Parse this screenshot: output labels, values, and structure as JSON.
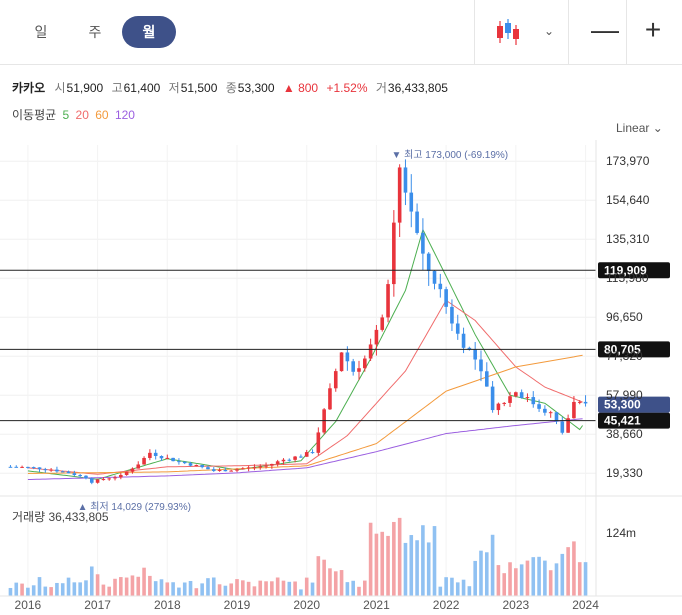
{
  "toolbar": {
    "tabs": [
      {
        "label": "일",
        "active": false
      },
      {
        "label": "주",
        "active": false
      },
      {
        "label": "월",
        "active": true
      }
    ],
    "chart_style_icon": "candlestick-icon",
    "dropdown_icon": "chevron-down-icon",
    "zoom_out_icon": "minus-icon",
    "zoom_in_icon": "plus-icon",
    "zoom_out_label": "—",
    "zoom_in_label": "+"
  },
  "info": {
    "name": "카카오",
    "open_label": "시",
    "open": "51,900",
    "high_label": "고",
    "high": "61,400",
    "low_label": "저",
    "low": "51,500",
    "close_label": "종",
    "close": "53,300",
    "change_arrow": "▲",
    "change": "800",
    "change_pct": "+1.52%",
    "volume_label": "거",
    "volume": "36,433,805"
  },
  "ma": {
    "label": "이동평균",
    "periods": [
      {
        "label": "5",
        "color": "#4caf50"
      },
      {
        "label": "20",
        "color": "#f06b6b"
      },
      {
        "label": "60",
        "color": "#f39a3c"
      },
      {
        "label": "120",
        "color": "#9b5fe0"
      }
    ]
  },
  "scale_label": "Linear",
  "colors": {
    "up": "#e8343c",
    "down": "#3b8eea",
    "accent": "#3e5189"
  },
  "chart_data": {
    "type": "candlestick",
    "x_tick_labels": [
      "2016",
      "2017",
      "2018",
      "2019",
      "2020",
      "2021",
      "2022",
      "2023",
      "2024"
    ],
    "y_tick_labels": [
      "173,970",
      "154,640",
      "135,310",
      "115,980",
      "96,650",
      "77,320",
      "57,990",
      "38,660",
      "19,330"
    ],
    "ylim": [
      12000,
      182000
    ],
    "grid": true,
    "horizontal_lines": [
      {
        "value": 119909,
        "label": "119,909",
        "badge_color": "#111111"
      },
      {
        "value": 80705,
        "label": "80,705",
        "badge_color": "#111111"
      },
      {
        "value": 45421,
        "label": "45,421",
        "badge_color": "#111111"
      }
    ],
    "last_price": {
      "value": 53300,
      "label": "53,300",
      "badge_color": "#3e5189"
    },
    "annotations": {
      "high": {
        "arrow": "▼",
        "label": "최고",
        "text": "173,000 (-69.19%)",
        "value": 173000,
        "date": "2021-06"
      },
      "low": {
        "arrow": "▲",
        "label": "최저",
        "text": "14,029 (279.93%)",
        "value": 14029,
        "date": "2017-01"
      }
    },
    "series_close": [
      [
        "2015-12",
        22500
      ],
      [
        "2016-03",
        22000
      ],
      [
        "2016-06",
        21200
      ],
      [
        "2016-09",
        19500
      ],
      [
        "2016-12",
        17200
      ],
      [
        "2017-01",
        15000
      ],
      [
        "2017-03",
        16500
      ],
      [
        "2017-06",
        18000
      ],
      [
        "2017-09",
        24000
      ],
      [
        "2017-11",
        29500
      ],
      [
        "2018-01",
        27500
      ],
      [
        "2018-04",
        25000
      ],
      [
        "2018-07",
        23000
      ],
      [
        "2018-10",
        20500
      ],
      [
        "2019-01",
        21000
      ],
      [
        "2019-04",
        22000
      ],
      [
        "2019-07",
        23000
      ],
      [
        "2019-10",
        26000
      ],
      [
        "2020-01",
        28000
      ],
      [
        "2020-03",
        30000
      ],
      [
        "2020-04",
        40000
      ],
      [
        "2020-06",
        60000
      ],
      [
        "2020-08",
        80000
      ],
      [
        "2020-10",
        70000
      ],
      [
        "2020-12",
        76000
      ],
      [
        "2021-02",
        88000
      ],
      [
        "2021-04",
        110000
      ],
      [
        "2021-06",
        170000
      ],
      [
        "2021-08",
        150000
      ],
      [
        "2021-10",
        125000
      ],
      [
        "2021-12",
        115000
      ],
      [
        "2022-02",
        102000
      ],
      [
        "2022-04",
        88000
      ],
      [
        "2022-06",
        80000
      ],
      [
        "2022-08",
        72000
      ],
      [
        "2022-10",
        52000
      ],
      [
        "2022-12",
        55000
      ],
      [
        "2023-02",
        60000
      ],
      [
        "2023-04",
        56000
      ],
      [
        "2023-06",
        52000
      ],
      [
        "2023-08",
        49000
      ],
      [
        "2023-10",
        39500
      ],
      [
        "2023-12",
        54000
      ],
      [
        "2024-01",
        53300
      ]
    ],
    "moving_averages": {
      "ma5": [
        [
          "2016-01",
          20500
        ],
        [
          "2017-01",
          16300
        ],
        [
          "2018-01",
          26500
        ],
        [
          "2019-01",
          21000
        ],
        [
          "2019-12",
          25500
        ],
        [
          "2020-06",
          45000
        ],
        [
          "2020-12",
          76000
        ],
        [
          "2021-06",
          110000
        ],
        [
          "2021-09",
          140000
        ],
        [
          "2022-01",
          117000
        ],
        [
          "2022-06",
          88000
        ],
        [
          "2022-12",
          58000
        ],
        [
          "2023-06",
          54000
        ],
        [
          "2023-12",
          41000
        ],
        [
          "2024-01",
          45000
        ]
      ],
      "ma20": [
        [
          "2016-01",
          22000
        ],
        [
          "2017-01",
          18800
        ],
        [
          "2018-01",
          22500
        ],
        [
          "2019-01",
          23000
        ],
        [
          "2020-01",
          24000
        ],
        [
          "2020-08",
          38000
        ],
        [
          "2021-06",
          70000
        ],
        [
          "2022-01",
          105000
        ],
        [
          "2022-06",
          95000
        ],
        [
          "2023-01",
          72000
        ],
        [
          "2023-06",
          62000
        ],
        [
          "2024-01",
          54000
        ]
      ],
      "ma60": [
        [
          "2016-01",
          19200
        ],
        [
          "2018-01",
          20000
        ],
        [
          "2019-01",
          21500
        ],
        [
          "2020-01",
          23000
        ],
        [
          "2021-01",
          34000
        ],
        [
          "2022-01",
          60000
        ],
        [
          "2023-01",
          72000
        ],
        [
          "2024-01",
          78000
        ]
      ],
      "ma120": [
        [
          "2016-01",
          16200
        ],
        [
          "2018-01",
          18000
        ],
        [
          "2019-01",
          19500
        ],
        [
          "2020-01",
          22000
        ],
        [
          "2021-01",
          30000
        ],
        [
          "2022-01",
          39000
        ],
        [
          "2023-01",
          43000
        ],
        [
          "2024-01",
          46500
        ]
      ]
    },
    "volume": {
      "label": "거래량",
      "last": "36,433,805",
      "y_tick_label": "124m",
      "peak_period": "2021"
    }
  }
}
